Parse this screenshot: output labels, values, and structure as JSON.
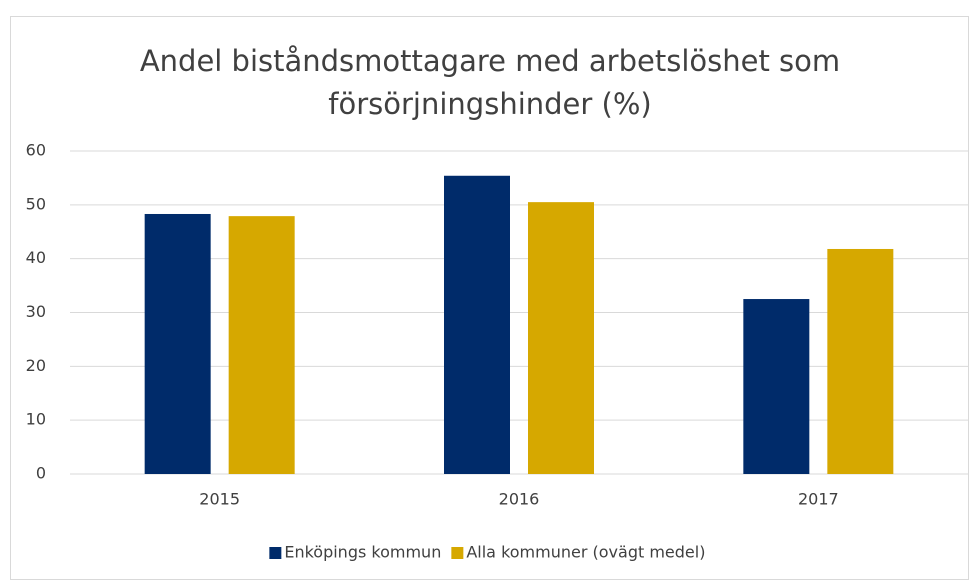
{
  "chart_data": {
    "type": "bar",
    "title": "Andel biståndsmottagare med arbetslöshet som försörjningshinder (%)",
    "categories": [
      "2015",
      "2016",
      "2017"
    ],
    "series": [
      {
        "name": "Enköpings kommun",
        "color": "#002b6a",
        "values": [
          48.3,
          55.4,
          32.5
        ]
      },
      {
        "name": "Alla kommuner (ovägt medel)",
        "color": "#d6a800",
        "values": [
          47.9,
          50.5,
          41.8
        ]
      }
    ],
    "ylim": [
      0,
      60
    ],
    "yticks": [
      0,
      10,
      20,
      30,
      40,
      50,
      60
    ],
    "grid": true,
    "legend": "bottom"
  }
}
